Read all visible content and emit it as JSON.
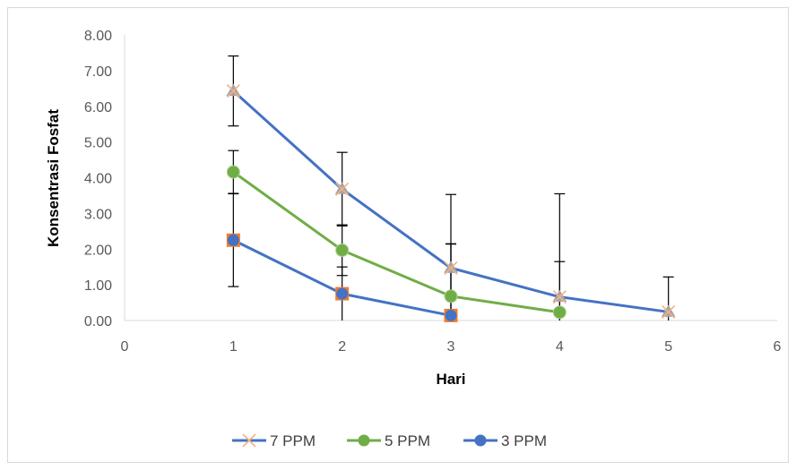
{
  "chart_data": {
    "type": "scatter",
    "title": "",
    "xlabel": "Hari",
    "ylabel": "Konsentrasi Fosfat",
    "xlim": [
      0,
      6
    ],
    "ylim": [
      0,
      8
    ],
    "x_ticks": [
      "0",
      "1",
      "2",
      "3",
      "4",
      "5",
      "6"
    ],
    "y_ticks": [
      "0.00",
      "1.00",
      "2.00",
      "3.00",
      "4.00",
      "5.00",
      "6.00",
      "7.00",
      "8.00"
    ],
    "grid": false,
    "legend_position": "bottom",
    "series": [
      {
        "name": "7 PPM",
        "color": "#4472c4",
        "marker": "x",
        "marker_color": "#a5a5a5",
        "x": [
          1,
          2,
          3,
          4,
          5
        ],
        "y": [
          6.43,
          3.68,
          1.47,
          0.66,
          0.24
        ],
        "error": [
          0.98,
          1.03,
          2.06,
          2.89,
          0.98
        ]
      },
      {
        "name": "5 PPM",
        "color": "#70ad47",
        "marker": "circle",
        "marker_color": "#70ad47",
        "x": [
          1,
          2,
          3,
          4
        ],
        "y": [
          4.16,
          1.97,
          0.68,
          0.23
        ],
        "error": [
          0.6,
          0.71,
          1.47,
          1.42
        ]
      },
      {
        "name": "3 PPM",
        "color": "#4472c4",
        "marker": "circle",
        "marker_color": "#4472c4",
        "x": [
          1,
          2,
          3
        ],
        "y": [
          2.25,
          0.75,
          0.14
        ],
        "error": [
          1.3,
          0.75,
          2.0
        ]
      }
    ]
  }
}
